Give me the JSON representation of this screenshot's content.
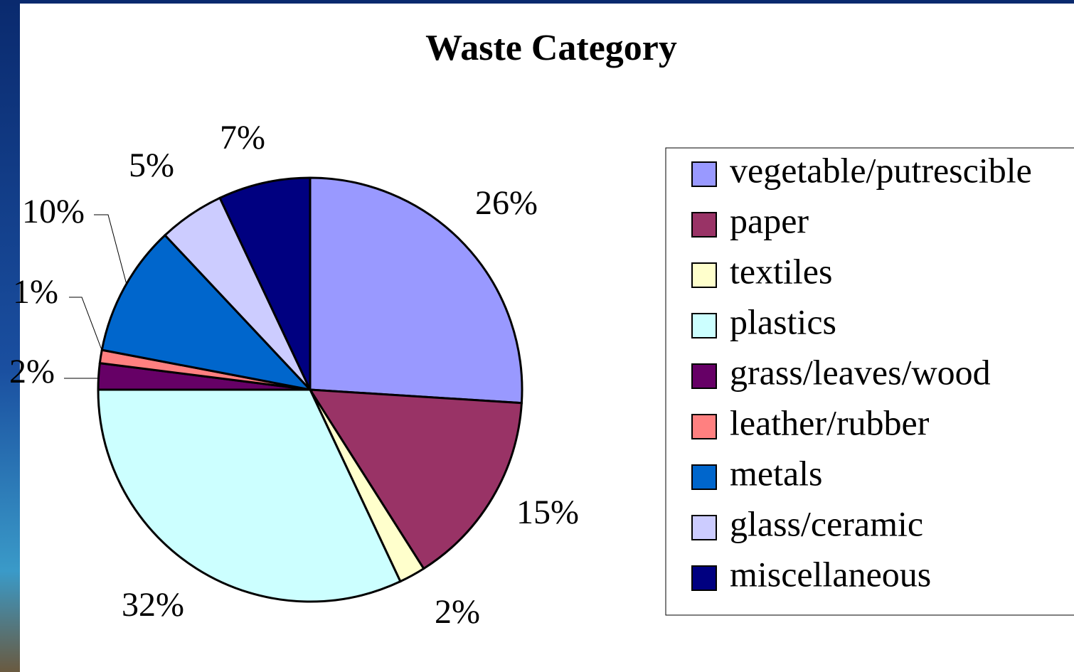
{
  "chart_data": {
    "type": "pie",
    "title": "Waste Category",
    "categories": [
      "vegetable/putrescible",
      "paper",
      "textiles",
      "plastics",
      "grass/leaves/wood",
      "leather/rubber",
      "metals",
      "glass/ceramic",
      "miscellaneous"
    ],
    "values": [
      26,
      15,
      2,
      32,
      2,
      1,
      10,
      5,
      7
    ],
    "value_labels": [
      "26%",
      "15%",
      "2%",
      "32%",
      "2%",
      "1%",
      "10%",
      "5%",
      "7%"
    ],
    "colors": [
      "#9999ff",
      "#993366",
      "#ffffcc",
      "#ccffff",
      "#660066",
      "#ff8080",
      "#0066cc",
      "#ccccff",
      "#000080"
    ],
    "legend": "right"
  }
}
